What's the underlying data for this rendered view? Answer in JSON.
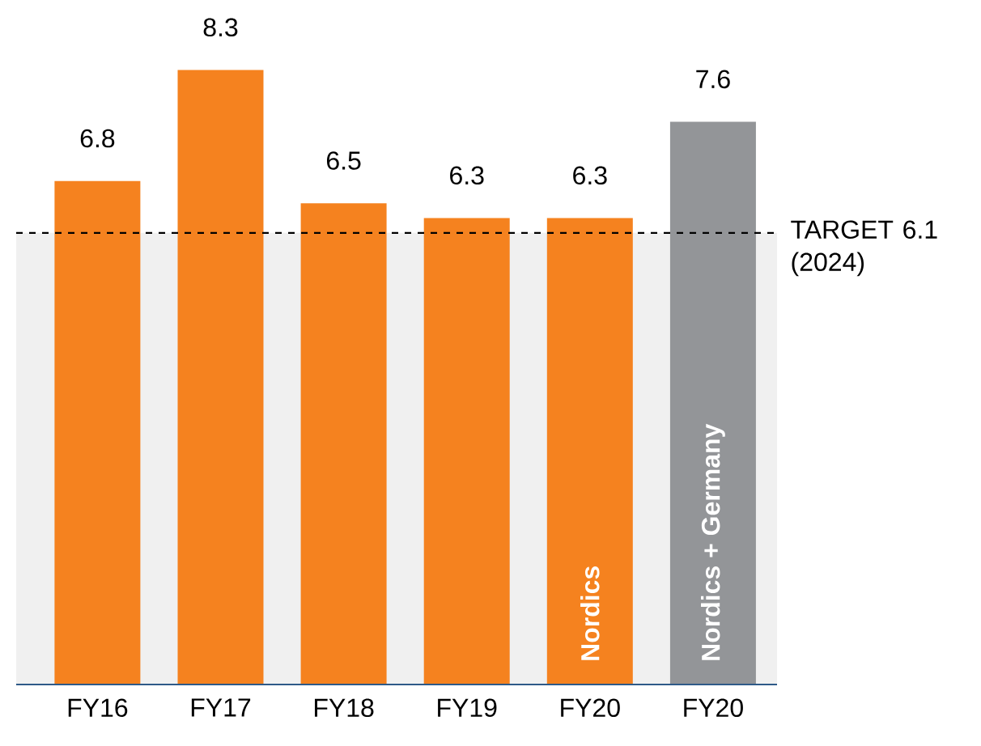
{
  "chart_data": {
    "type": "bar",
    "categories": [
      "FY16",
      "FY17",
      "FY18",
      "FY19",
      "FY20",
      "FY20"
    ],
    "values": [
      6.8,
      8.3,
      6.5,
      6.3,
      6.3,
      7.6
    ],
    "colors": [
      "#f5821f",
      "#f5821f",
      "#f5821f",
      "#f5821f",
      "#f5821f",
      "#939598"
    ],
    "data_labels": true,
    "ref_lines": [
      {
        "axis": "y",
        "value": 6.1,
        "label": "TARGET 6.1 (2024)",
        "color": "#000000",
        "line_style": "dashed"
      }
    ],
    "bands": [
      {
        "axis": "y",
        "from": 0,
        "to": 6.1,
        "color": "#f0f0f0"
      }
    ],
    "annotations": [
      "Nordics",
      "Nordics + Germany"
    ]
  }
}
